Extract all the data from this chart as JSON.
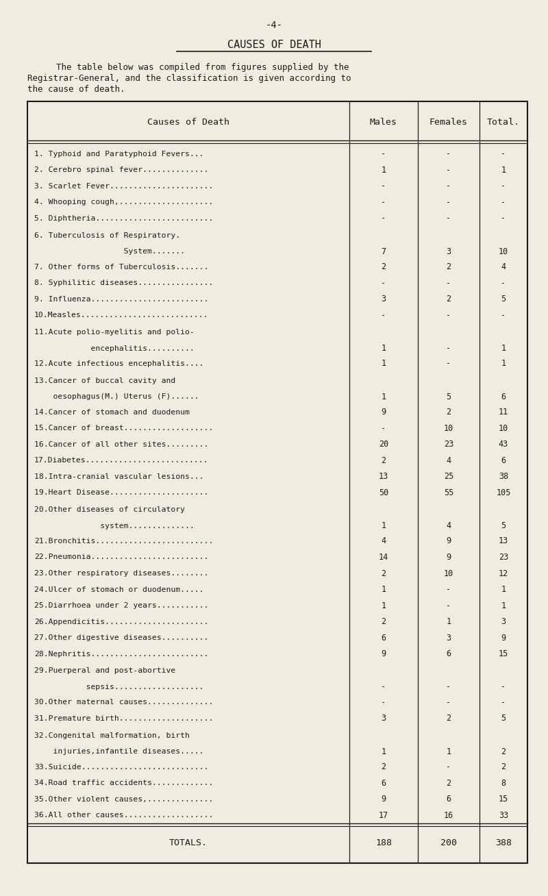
{
  "page_number": "-4-",
  "title": "CAUSES OF DEATH",
  "intro_text_line1": "    The table below was compiled from figures supplied by the",
  "intro_text_line2": "Registrar-General, and the classification is given according to",
  "intro_text_line3": "the cause of death.",
  "col_headers": [
    "Causes of Death",
    "Males",
    "Females",
    "Total."
  ],
  "rows": [
    {
      "label": "1. Typhoid and Paratyphoid Fevers...",
      "label2": null,
      "males": "-",
      "females": "-",
      "total": "-"
    },
    {
      "label": "2. Cerebro spinal fever..............",
      "label2": null,
      "males": "1",
      "females": "-",
      "total": "1"
    },
    {
      "label": "3. Scarlet Fever......................",
      "label2": null,
      "males": "-",
      "females": "-",
      "total": "-"
    },
    {
      "label": "4. Whooping cough,....................",
      "label2": null,
      "males": "-",
      "females": "-",
      "total": "-"
    },
    {
      "label": "5. Diphtheria.........................",
      "label2": null,
      "males": "-",
      "females": "-",
      "total": "-"
    },
    {
      "label": "6. Tuberculosis of Respiratory.",
      "label2": "                   System.......",
      "males": "7",
      "females": "3",
      "total": "10"
    },
    {
      "label": "7. Other forms of Tuberculosis.......",
      "label2": null,
      "males": "2",
      "females": "2",
      "total": "4"
    },
    {
      "label": "8. Syphilitic diseases................",
      "label2": null,
      "males": "-",
      "females": "-",
      "total": "-"
    },
    {
      "label": "9. Influenza.........................",
      "label2": null,
      "males": "3",
      "females": "2",
      "total": "5"
    },
    {
      "label": "10.Measles...........................",
      "label2": null,
      "males": "-",
      "females": "-",
      "total": "-"
    },
    {
      "label": "11.Acute polio-myelitis and polio-",
      "label2": "            encephalitis..........",
      "males": "1",
      "females": "-",
      "total": "1"
    },
    {
      "label": "12.Acute infectious encephalitis....",
      "label2": null,
      "males": "1",
      "females": "-",
      "total": "1"
    },
    {
      "label": "13.Cancer of buccal cavity and",
      "label2": "    oesophagus(M.) Uterus (F)......",
      "males": "1",
      "females": "5",
      "total": "6"
    },
    {
      "label": "14.Cancer of stomach and duodenum",
      "label2": null,
      "males": "9",
      "females": "2",
      "total": "11"
    },
    {
      "label": "15.Cancer of breast...................",
      "label2": null,
      "males": "-",
      "females": "10",
      "total": "10"
    },
    {
      "label": "16.Cancer of all other sites.........",
      "label2": null,
      "males": "20",
      "females": "23",
      "total": "43"
    },
    {
      "label": "17.Diabetes..........................",
      "label2": null,
      "males": "2",
      "females": "4",
      "total": "6"
    },
    {
      "label": "18.Intra-cranial vascular lesions...",
      "label2": null,
      "males": "13",
      "females": "25",
      "total": "38"
    },
    {
      "label": "19.Heart Disease.....................",
      "label2": null,
      "males": "50",
      "females": "55",
      "total": "105"
    },
    {
      "label": "20.Other diseases of circulatory",
      "label2": "              system..............",
      "males": "1",
      "females": "4",
      "total": "5"
    },
    {
      "label": "21.Bronchitis.........................",
      "label2": null,
      "males": "4",
      "females": "9",
      "total": "13"
    },
    {
      "label": "22.Pneumonia.........................",
      "label2": null,
      "males": "14",
      "females": "9",
      "total": "23"
    },
    {
      "label": "23.Other respiratory diseases........",
      "label2": null,
      "males": "2",
      "females": "10",
      "total": "12"
    },
    {
      "label": "24.Ulcer of stomach or duodenum.....",
      "label2": null,
      "males": "1",
      "females": "-",
      "total": "1"
    },
    {
      "label": "25.Diarrhoea under 2 years...........",
      "label2": null,
      "males": "1",
      "females": "-",
      "total": "1"
    },
    {
      "label": "26.Appendicitis......................",
      "label2": null,
      "males": "2",
      "females": "1",
      "total": "3"
    },
    {
      "label": "27.Other digestive diseases..........",
      "label2": null,
      "males": "6",
      "females": "3",
      "total": "9"
    },
    {
      "label": "28.Nephritis.........................",
      "label2": null,
      "males": "9",
      "females": "6",
      "total": "15"
    },
    {
      "label": "29.Puerperal and post-abortive",
      "label2": "           sepsis...................",
      "males": "-",
      "females": "-",
      "total": "-"
    },
    {
      "label": "30.Other maternal causes..............",
      "label2": null,
      "males": "-",
      "females": "-",
      "total": "-"
    },
    {
      "label": "31.Premature birth....................",
      "label2": null,
      "males": "3",
      "females": "2",
      "total": "5"
    },
    {
      "label": "32.Congenital malformation, birth",
      "label2": "    injuries,infantile diseases.....",
      "males": "1",
      "females": "1",
      "total": "2"
    },
    {
      "label": "33.Suicide...........................",
      "label2": null,
      "males": "2",
      "females": "-",
      "total": "2"
    },
    {
      "label": "34.Road traffic accidents.............",
      "label2": null,
      "males": "6",
      "females": "2",
      "total": "8"
    },
    {
      "label": "35.Other violent causes,..............",
      "label2": null,
      "males": "9",
      "females": "6",
      "total": "15"
    },
    {
      "label": "36.All other causes...................",
      "label2": null,
      "males": "17",
      "females": "16",
      "total": "33"
    }
  ],
  "totals": {
    "label": "TOTALS.",
    "males": "188",
    "females": "200",
    "total": "388"
  },
  "bg_color": "#f0ede0",
  "text_color": "#1a1a1a",
  "two_line_indices": [
    5,
    10,
    12,
    19,
    28,
    31
  ]
}
